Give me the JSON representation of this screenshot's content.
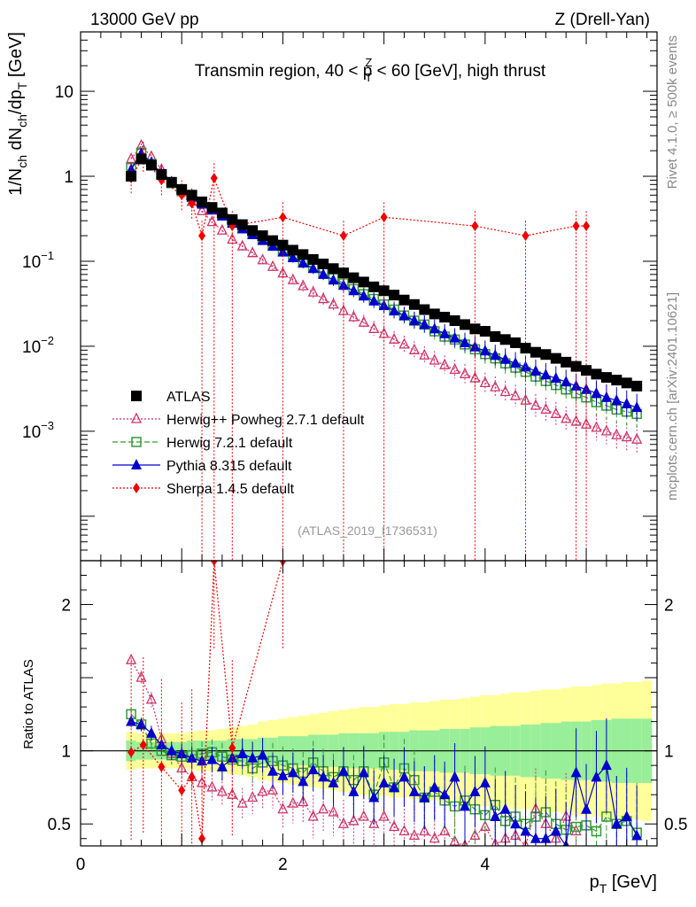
{
  "header": {
    "left": "13000 GeV pp",
    "right": "Z (Drell-Yan)"
  },
  "side": {
    "rivet": "Rivet 4.1.0, ≥ 500k events",
    "mcplots": "mcplots.cern.ch [arXiv:2401.10621]"
  },
  "colors": {
    "atlas": "#000000",
    "herwigpp": "#cc3366",
    "herwig7": "#339933",
    "pythia": "#0000cc",
    "sherpa": "#ee0000",
    "band_inner": "#99ee99",
    "band_outer": "#ffff99"
  },
  "chart_data": [
    {
      "type": "scatter",
      "panel": "main",
      "title": "Transmin region, 40 < p_T^Z < 60 [GeV], high thrust",
      "title_parts": [
        "Transmin region, 40 < p",
        "Z",
        "T",
        " < 60 [GeV], high thrust"
      ],
      "ylabel": "1/N_ch dN_ch/dp_T [GeV]",
      "ylabel_parts": [
        "1/N",
        "ch",
        " dN",
        "ch",
        "/dp",
        "T",
        " [GeV]"
      ],
      "yscale": "log",
      "xlim": [
        0,
        5.7
      ],
      "ylim": [
        3e-05,
        50
      ],
      "ytick_labels": [
        {
          "value": 10,
          "label": "10",
          "exp": ""
        },
        {
          "value": 1,
          "label": "1",
          "exp": ""
        },
        {
          "value": 0.1,
          "label": "10",
          "exp": "−1"
        },
        {
          "value": 0.01,
          "label": "10",
          "exp": "−2"
        },
        {
          "value": 0.001,
          "label": "10",
          "exp": "−3"
        }
      ],
      "watermark": "(ATLAS_2019_I1736531)",
      "legend": [
        "ATLAS",
        "Herwig++ Powheg 2.7.1 default",
        "Herwig 7.2.1 default",
        "Pythia 8.315 default",
        "Sherpa 1.4.5 default"
      ],
      "x": [
        0.5,
        0.6,
        0.7,
        0.8,
        0.9,
        1.0,
        1.1,
        1.2,
        1.3,
        1.4,
        1.5,
        1.6,
        1.7,
        1.8,
        1.9,
        2.0,
        2.1,
        2.2,
        2.3,
        2.4,
        2.5,
        2.6,
        2.7,
        2.8,
        2.9,
        3.0,
        3.1,
        3.2,
        3.3,
        3.4,
        3.5,
        3.6,
        3.7,
        3.8,
        3.9,
        4.0,
        4.1,
        4.2,
        4.3,
        4.4,
        4.5,
        4.6,
        4.7,
        4.8,
        4.9,
        5.0,
        5.1,
        5.2,
        5.3,
        5.4,
        5.5
      ],
      "series": [
        {
          "name": "ATLAS",
          "marker": "square",
          "values": [
            1.0,
            1.6,
            1.35,
            1.05,
            0.85,
            0.7,
            0.6,
            0.5,
            0.43,
            0.37,
            0.31,
            0.27,
            0.23,
            0.2,
            0.175,
            0.155,
            0.135,
            0.12,
            0.105,
            0.093,
            0.082,
            0.073,
            0.064,
            0.057,
            0.05,
            0.045,
            0.04,
            0.035,
            0.031,
            0.027,
            0.024,
            0.022,
            0.02,
            0.018,
            0.016,
            0.015,
            0.013,
            0.012,
            0.011,
            0.0095,
            0.0085,
            0.008,
            0.0072,
            0.0065,
            0.0058,
            0.0052,
            0.0047,
            0.0043,
            0.004,
            0.0037,
            0.0034
          ]
        },
        {
          "name": "Herwig++ Powheg 2.7.1 default",
          "marker": "triangle-open",
          "line": "dotted",
          "values": [
            1.6,
            2.3,
            1.7,
            1.2,
            0.83,
            0.65,
            0.5,
            0.39,
            0.29,
            0.23,
            0.18,
            0.15,
            0.125,
            0.103,
            0.086,
            0.072,
            0.06,
            0.051,
            0.043,
            0.036,
            0.031,
            0.026,
            0.022,
            0.019,
            0.016,
            0.014,
            0.012,
            0.0105,
            0.009,
            0.0078,
            0.0068,
            0.006,
            0.0053,
            0.0047,
            0.0042,
            0.0037,
            0.0033,
            0.0029,
            0.0026,
            0.0023,
            0.002,
            0.0018,
            0.0016,
            0.0014,
            0.0013,
            0.0012,
            0.0011,
            0.001,
            0.0009,
            0.00085,
            0.0008
          ]
        },
        {
          "name": "Herwig 7.2.1 default",
          "marker": "square-open",
          "line": "dashed",
          "values": [
            1.25,
            1.9,
            1.4,
            1.05,
            0.83,
            0.67,
            0.57,
            0.48,
            0.42,
            0.35,
            0.29,
            0.25,
            0.21,
            0.18,
            0.155,
            0.133,
            0.114,
            0.098,
            0.085,
            0.073,
            0.063,
            0.055,
            0.047,
            0.041,
            0.036,
            0.031,
            0.027,
            0.023,
            0.02,
            0.018,
            0.015,
            0.013,
            0.012,
            0.0105,
            0.0092,
            0.0081,
            0.0072,
            0.0063,
            0.0056,
            0.005,
            0.0044,
            0.0039,
            0.0035,
            0.0031,
            0.0028,
            0.0025,
            0.0022,
            0.002,
            0.0018,
            0.0017,
            0.0016
          ]
        },
        {
          "name": "Pythia 8.315 default",
          "marker": "triangle",
          "line": "solid",
          "values": [
            1.2,
            1.85,
            1.45,
            1.08,
            0.86,
            0.7,
            0.57,
            0.47,
            0.4,
            0.34,
            0.28,
            0.24,
            0.205,
            0.175,
            0.15,
            0.128,
            0.11,
            0.095,
            0.082,
            0.07,
            0.06,
            0.052,
            0.045,
            0.039,
            0.034,
            0.03,
            0.026,
            0.023,
            0.02,
            0.018,
            0.016,
            0.014,
            0.0125,
            0.011,
            0.0098,
            0.0088,
            0.0078,
            0.007,
            0.0063,
            0.0057,
            0.0051,
            0.0046,
            0.0042,
            0.0038,
            0.0034,
            0.0031,
            0.0028,
            0.0025,
            0.0023,
            0.0021,
            0.0019
          ]
        },
        {
          "name": "Sherpa 1.4.5 default",
          "marker": "diamond",
          "line": "dotted",
          "x": [
            0.5,
            0.62,
            0.8,
            1.0,
            1.1,
            1.2,
            1.32,
            1.5,
            2.0,
            2.6,
            3.0,
            3.9,
            4.4,
            4.9,
            5.0
          ],
          "values": [
            0.95,
            1.7,
            0.9,
            0.6,
            0.48,
            0.2,
            0.95,
            0.26,
            0.33,
            0.2,
            0.33,
            0.26,
            0.2,
            0.26,
            0.26
          ]
        }
      ]
    },
    {
      "type": "scatter",
      "panel": "ratio",
      "ylabel": "Ratio to ATLAS",
      "xlabel": "p_T [GeV]",
      "xlabel_parts": [
        "p",
        "T",
        " [GeV]"
      ],
      "xlim": [
        0,
        5.7
      ],
      "ylim": [
        0.35,
        2.3
      ],
      "xtick_labels": [
        {
          "value": 0,
          "label": "0"
        },
        {
          "value": 2,
          "label": "2"
        },
        {
          "value": 4,
          "label": "4"
        }
      ],
      "ytick_labels": [
        {
          "value": 0.5,
          "label": "0.5"
        },
        {
          "value": 1,
          "label": "1"
        },
        {
          "value": 2,
          "label": "2"
        }
      ],
      "ytick_labels_right": [
        "0.5",
        "1",
        "2"
      ],
      "band": {
        "x": [
          0.45,
          0.55,
          0.65,
          0.75,
          0.85,
          0.95,
          1.05,
          1.15,
          1.25,
          1.35,
          1.45,
          1.55,
          1.65,
          1.75,
          1.85,
          1.95,
          2.05,
          2.15,
          2.25,
          2.35,
          2.45,
          2.55,
          2.65,
          2.75,
          2.85,
          2.95,
          3.05,
          3.15,
          3.25,
          3.35,
          3.45,
          3.55,
          3.65,
          3.75,
          3.85,
          3.95,
          4.05,
          4.15,
          4.25,
          4.35,
          4.45,
          4.55,
          4.65,
          4.75,
          4.85,
          4.95,
          5.05,
          5.15,
          5.25,
          5.35,
          5.45,
          5.55
        ],
        "inner": [
          0.07,
          0.06,
          0.06,
          0.06,
          0.06,
          0.06,
          0.07,
          0.07,
          0.07,
          0.07,
          0.08,
          0.08,
          0.08,
          0.09,
          0.09,
          0.1,
          0.1,
          0.1,
          0.11,
          0.11,
          0.11,
          0.12,
          0.12,
          0.12,
          0.12,
          0.13,
          0.13,
          0.13,
          0.14,
          0.14,
          0.14,
          0.15,
          0.15,
          0.15,
          0.16,
          0.16,
          0.17,
          0.17,
          0.17,
          0.18,
          0.18,
          0.19,
          0.19,
          0.2,
          0.2,
          0.2,
          0.21,
          0.21,
          0.22,
          0.22,
          0.22,
          0.22
        ],
        "outer": [
          0.13,
          0.12,
          0.12,
          0.12,
          0.12,
          0.12,
          0.13,
          0.14,
          0.14,
          0.15,
          0.16,
          0.17,
          0.18,
          0.2,
          0.21,
          0.22,
          0.23,
          0.24,
          0.25,
          0.26,
          0.27,
          0.28,
          0.29,
          0.3,
          0.3,
          0.31,
          0.32,
          0.32,
          0.33,
          0.33,
          0.34,
          0.35,
          0.35,
          0.36,
          0.37,
          0.38,
          0.38,
          0.39,
          0.4,
          0.4,
          0.41,
          0.42,
          0.42,
          0.43,
          0.44,
          0.44,
          0.45,
          0.46,
          0.46,
          0.47,
          0.47,
          0.48
        ]
      },
      "series": [
        {
          "name": "Herwig++ Powheg 2.7.1 default",
          "x": [
            0.5,
            0.6,
            0.7,
            0.8,
            0.9,
            1.0,
            1.1,
            1.2,
            1.3,
            1.4,
            1.5,
            1.6,
            1.7,
            1.8,
            1.9,
            2.0,
            2.1,
            2.2,
            2.3,
            2.4,
            2.5,
            2.6,
            2.7,
            2.8,
            2.9,
            3.0,
            3.1,
            3.2,
            3.3,
            3.4,
            3.5,
            3.6,
            3.7,
            3.8,
            3.9,
            4.0,
            4.1,
            4.2,
            4.3,
            4.4,
            4.5,
            4.6,
            4.7,
            4.8,
            4.9
          ],
          "values": [
            1.62,
            1.5,
            1.35,
            1.08,
            0.98,
            0.88,
            0.82,
            0.78,
            0.75,
            0.72,
            0.7,
            0.64,
            0.68,
            0.72,
            0.73,
            0.6,
            0.64,
            0.65,
            0.55,
            0.6,
            0.58,
            0.5,
            0.52,
            0.55,
            0.5,
            0.55,
            0.48,
            0.45,
            0.42,
            0.45,
            0.4,
            0.45,
            0.38,
            0.35,
            0.42,
            0.48,
            0.36,
            0.4,
            0.42,
            0.35,
            0.6,
            0.5,
            0.4,
            0.55,
            0.45
          ]
        },
        {
          "name": "Herwig 7.2.1 default",
          "x": [
            0.5,
            0.6,
            0.7,
            0.8,
            0.9,
            1.0,
            1.1,
            1.2,
            1.3,
            1.4,
            1.5,
            1.6,
            1.7,
            1.8,
            1.9,
            2.0,
            2.1,
            2.2,
            2.3,
            2.4,
            2.5,
            2.6,
            2.7,
            2.8,
            2.9,
            3.0,
            3.1,
            3.2,
            3.3,
            3.4,
            3.5,
            3.6,
            3.7,
            3.8,
            3.9,
            4.0,
            4.1,
            4.2,
            4.3,
            4.4,
            4.5,
            4.6,
            4.7,
            4.8,
            4.9,
            5.0,
            5.1,
            5.2,
            5.3,
            5.4,
            5.5
          ],
          "values": [
            1.25,
            1.18,
            1.05,
            1.0,
            0.97,
            0.96,
            0.97,
            0.98,
            0.99,
            0.96,
            0.94,
            0.93,
            0.88,
            0.92,
            0.93,
            0.9,
            0.88,
            0.85,
            0.92,
            0.86,
            0.82,
            0.86,
            0.8,
            0.86,
            0.7,
            0.92,
            0.75,
            0.88,
            0.8,
            0.68,
            0.72,
            0.66,
            0.62,
            0.66,
            0.6,
            0.56,
            0.63,
            0.52,
            0.55,
            0.5,
            0.55,
            0.58,
            0.5,
            0.46,
            0.48,
            0.49,
            0.45,
            0.55,
            0.5,
            0.52,
            0.44
          ]
        },
        {
          "name": "Pythia 8.315 default",
          "x": [
            0.5,
            0.6,
            0.7,
            0.8,
            0.9,
            1.0,
            1.1,
            1.2,
            1.3,
            1.4,
            1.5,
            1.6,
            1.7,
            1.8,
            1.9,
            2.0,
            2.1,
            2.2,
            2.3,
            2.4,
            2.5,
            2.6,
            2.7,
            2.8,
            2.9,
            3.0,
            3.1,
            3.2,
            3.3,
            3.4,
            3.5,
            3.6,
            3.7,
            3.8,
            3.9,
            4.0,
            4.1,
            4.2,
            4.3,
            4.4,
            4.5,
            4.6,
            4.7,
            4.8,
            4.9,
            5.0,
            5.1,
            5.2,
            5.3,
            5.4,
            5.5
          ],
          "values": [
            1.2,
            1.18,
            1.12,
            1.04,
            1.0,
            0.98,
            0.95,
            0.93,
            0.94,
            0.89,
            0.95,
            0.98,
            0.95,
            0.97,
            0.86,
            0.83,
            0.85,
            0.79,
            0.87,
            0.82,
            0.78,
            0.86,
            0.72,
            0.85,
            0.68,
            0.78,
            0.75,
            0.82,
            0.72,
            0.68,
            0.75,
            0.7,
            0.82,
            0.62,
            0.72,
            0.78,
            0.55,
            0.6,
            0.5,
            0.45,
            0.4,
            0.4,
            0.45,
            0.35,
            0.85,
            0.6,
            0.82,
            0.9,
            0.5,
            0.55,
            0.42
          ]
        },
        {
          "name": "Sherpa 1.4.5 default",
          "x": [
            0.5,
            0.62,
            0.8,
            1.0,
            1.1,
            1.2,
            1.32,
            1.5,
            2.0
          ],
          "values": [
            0.99,
            1.04,
            0.89,
            0.73,
            0.82,
            0.4,
            2.3,
            1.02,
            2.3
          ]
        }
      ]
    }
  ]
}
